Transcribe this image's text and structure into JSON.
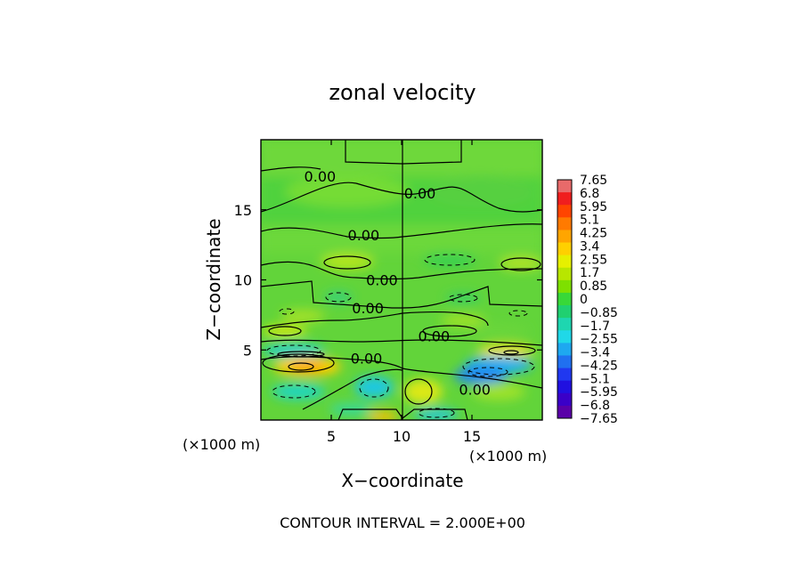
{
  "chart_data": {
    "type": "heatmap",
    "title": "zonal velocity",
    "xlabel": "X−coordinate",
    "ylabel": "Z−coordinate",
    "xunit_left": "(×1000 m)",
    "xunit_right": "(×1000 m)",
    "footer": "CONTOUR INTERVAL = 2.000E+00",
    "xlim": [
      0,
      20
    ],
    "ylim": [
      0,
      20
    ],
    "xticks": [
      {
        "value": 5,
        "label": "5"
      },
      {
        "value": 10,
        "label": "10"
      },
      {
        "value": 15,
        "label": "15"
      }
    ],
    "yticks": [
      {
        "value": 5,
        "label": "5"
      },
      {
        "value": 10,
        "label": "10"
      },
      {
        "value": 15,
        "label": "15"
      }
    ],
    "colorbar": {
      "range": [
        -7.65,
        7.65
      ],
      "levels": [
        "7.65",
        "6.8",
        "5.95",
        "5.1",
        "4.25",
        "3.4",
        "2.55",
        "1.7",
        "0.85",
        "0",
        "−0.85",
        "−1.7",
        "−2.55",
        "−3.4",
        "−4.25",
        "−5.1",
        "−5.95",
        "−6.8",
        "−7.65"
      ],
      "colors": [
        "#e86a6a",
        "#f01e1e",
        "#ff4400",
        "#ff7a00",
        "#ffa500",
        "#ffd000",
        "#e6f000",
        "#b8e600",
        "#7ee000",
        "#38d838",
        "#20d070",
        "#1ed6b0",
        "#20d8e8",
        "#1ea8f0",
        "#2070f0",
        "#2038f0",
        "#2010e0",
        "#3a00c8",
        "#5a00a8"
      ]
    },
    "contour_labels": [
      {
        "text": "0.00",
        "x": 4.2,
        "z": 17.4
      },
      {
        "text": "0.00",
        "x": 11.3,
        "z": 16.2
      },
      {
        "text": "0.00",
        "x": 7.3,
        "z": 13.2
      },
      {
        "text": "0.00",
        "x": 8.6,
        "z": 10.0
      },
      {
        "text": "0.00",
        "x": 7.6,
        "z": 8.0
      },
      {
        "text": "0.00",
        "x": 12.3,
        "z": 6.0
      },
      {
        "text": "0.00",
        "x": 7.5,
        "z": 4.4
      },
      {
        "text": "0.00",
        "x": 15.2,
        "z": 2.2
      }
    ]
  }
}
